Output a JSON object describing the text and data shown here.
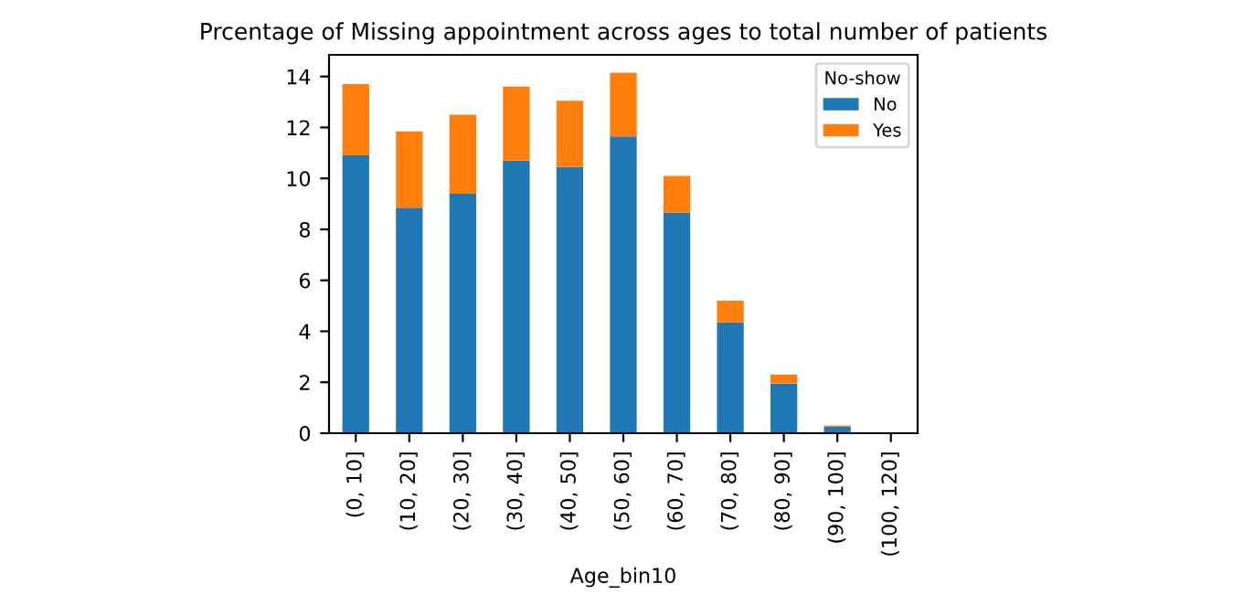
{
  "chart_data": {
    "type": "bar",
    "stacked": true,
    "title": "Prcentage of Missing appointment across ages to total number of patients",
    "xlabel": "Age_bin10",
    "legend_title": "No-show",
    "legend": "top right",
    "categories": [
      "(0, 10]",
      "(10, 20]",
      "(20, 30]",
      "(30, 40]",
      "(40, 50]",
      "(50, 60]",
      "(60, 70]",
      "(70, 80]",
      "(80, 90]",
      "(90, 100]",
      "(100, 120]"
    ],
    "series": [
      {
        "name": "No",
        "color": "#1f77b4",
        "values": [
          10.9,
          8.85,
          9.4,
          10.7,
          10.45,
          11.65,
          8.65,
          4.35,
          1.95,
          0.25,
          0
        ]
      },
      {
        "name": "Yes",
        "color": "#ff7f0e",
        "values": [
          2.8,
          3.0,
          3.1,
          2.9,
          2.6,
          2.5,
          1.45,
          0.85,
          0.35,
          0.05,
          0
        ]
      }
    ],
    "ylim": [
      0,
      14.85
    ],
    "yticks": [
      0,
      2,
      4,
      6,
      8,
      10,
      12,
      14
    ],
    "grid": false
  }
}
